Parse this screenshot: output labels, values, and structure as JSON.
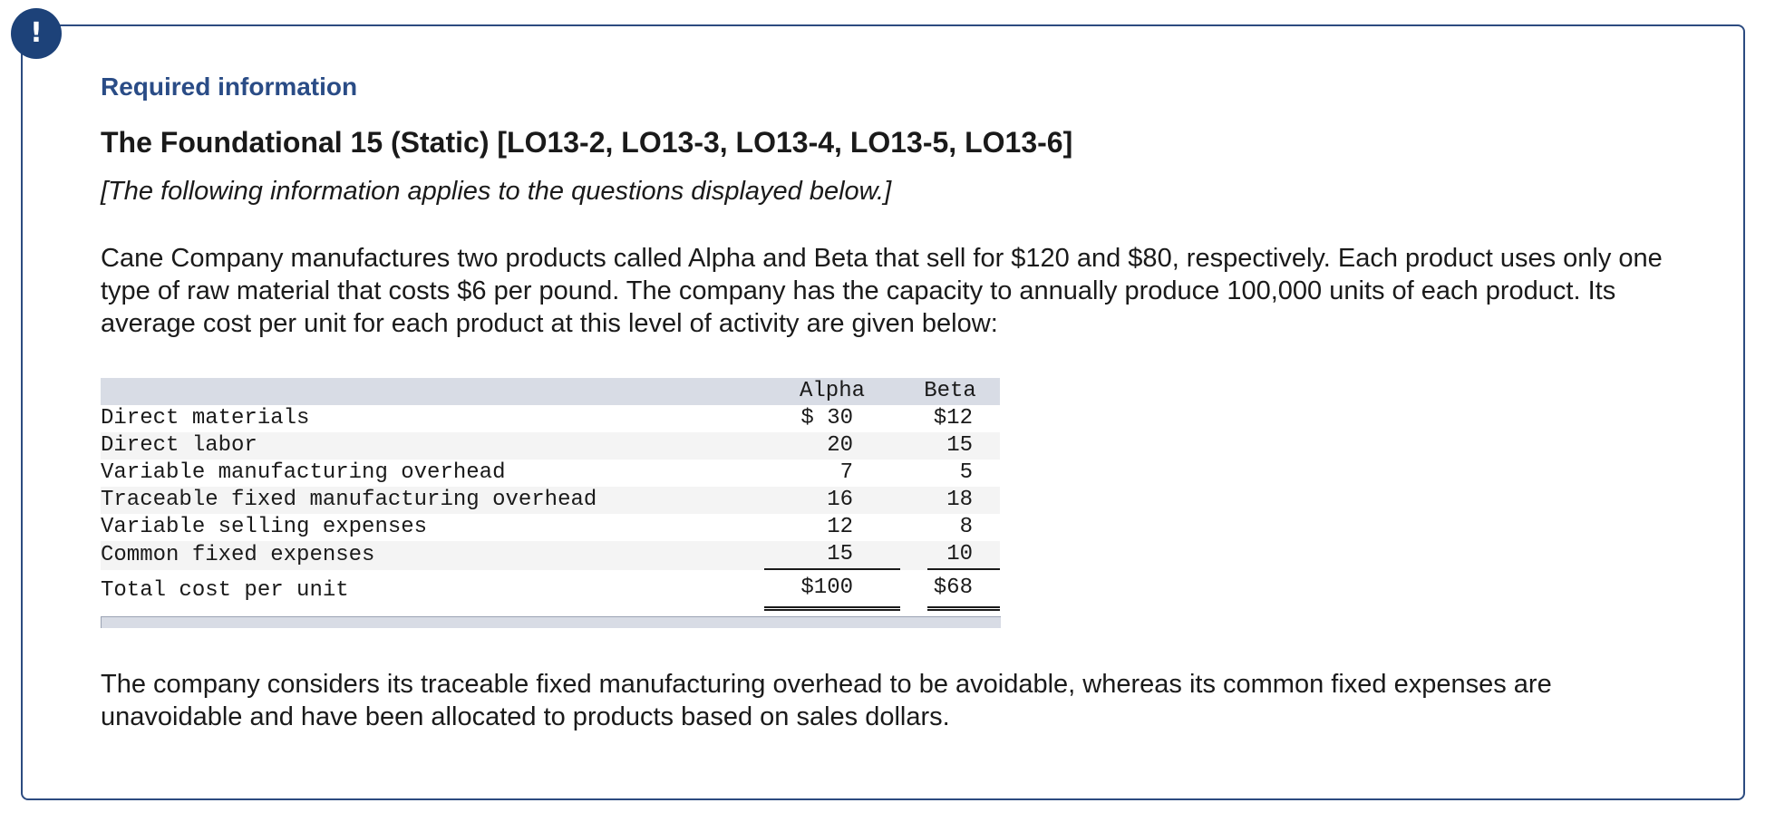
{
  "badge": {
    "glyph": "!"
  },
  "header": {
    "required_info": "Required information",
    "title": "The Foundational 15 (Static) [LO13-2, LO13-3, LO13-4, LO13-5, LO13-6]",
    "subtitle": "[The following information applies to the questions displayed below.]"
  },
  "intro_paragraph": "Cane Company manufactures two products called Alpha and Beta that sell for $120 and $80, respectively. Each product uses only one type of raw material that costs $6 per pound. The company has the capacity to annually produce 100,000 units of each product. Its average cost per unit for each product at this level of activity are given below:",
  "cost_table": {
    "columns": [
      "Alpha",
      "Beta"
    ],
    "rows": [
      {
        "label": "Direct materials",
        "alpha": "$ 30",
        "beta": "$12"
      },
      {
        "label": "Direct labor",
        "alpha": "20",
        "beta": "15"
      },
      {
        "label": "Variable manufacturing overhead",
        "alpha": "7",
        "beta": "5"
      },
      {
        "label": "Traceable fixed manufacturing overhead",
        "alpha": "16",
        "beta": "18"
      },
      {
        "label": "Variable selling expenses",
        "alpha": "12",
        "beta": "8"
      },
      {
        "label": "Common fixed expenses",
        "alpha": "15",
        "beta": "10"
      }
    ],
    "total": {
      "label": "Total cost per unit",
      "alpha": "$100",
      "beta": "$68"
    }
  },
  "closing_paragraph": "The company considers its traceable fixed manufacturing overhead to be avoidable, whereas its common fixed expenses are unavoidable and have been allocated to products based on sales dollars."
}
